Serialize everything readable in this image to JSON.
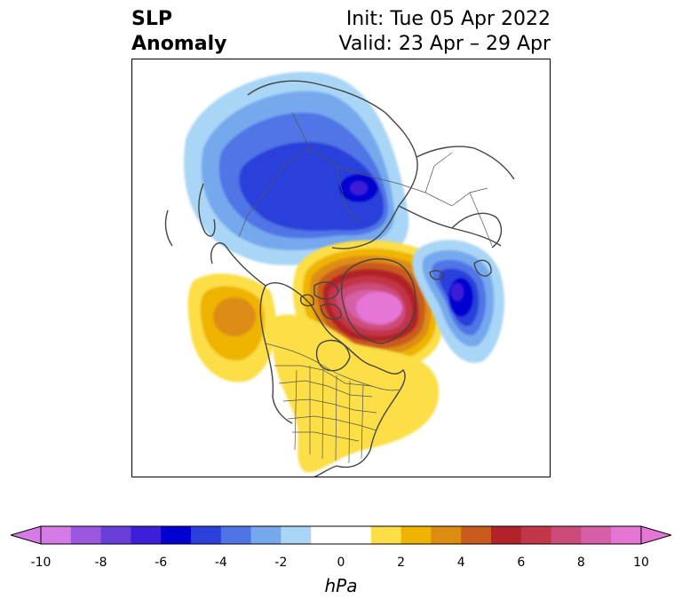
{
  "title": {
    "left_line1": "SLP",
    "left_line2": "Anomaly",
    "right_line1": "Init: Tue 05 Apr 2022",
    "right_line2": "Valid: 23 Apr – 29 Apr"
  },
  "map": {
    "projection": "polar stereographic, North America / Arctic / Greenland",
    "features": [
      {
        "name": "negative anomaly over Siberia / East Asia",
        "min_hpa": -7
      },
      {
        "name": "strong positive anomaly centered over Greenland / Canadian Arctic",
        "max_hpa": 10
      },
      {
        "name": "negative anomaly off Iceland / North Atlantic",
        "min_hpa": -8
      },
      {
        "name": "positive anomaly over Gulf of Alaska / NE Pacific",
        "max_hpa": 4
      },
      {
        "name": "positive anomaly over eastern United States",
        "max_hpa": 2
      }
    ]
  },
  "colorbar": {
    "unit": "hPa",
    "ticks": [
      "-10",
      "-8",
      "-6",
      "-4",
      "-2",
      "0",
      "2",
      "4",
      "6",
      "8",
      "10"
    ],
    "extend": "both",
    "bins": [
      {
        "from": -10,
        "to": -9,
        "color": "#d67ae6"
      },
      {
        "from": -9,
        "to": -8,
        "color": "#9d56e0"
      },
      {
        "from": -8,
        "to": -7,
        "color": "#6a3fd9"
      },
      {
        "from": -7,
        "to": -6,
        "color": "#3e1fd8"
      },
      {
        "from": -6,
        "to": -5,
        "color": "#0000d0"
      },
      {
        "from": -5,
        "to": -4,
        "color": "#2b3fda"
      },
      {
        "from": -4,
        "to": -3,
        "color": "#4f74e6"
      },
      {
        "from": -3,
        "to": -2,
        "color": "#76a8ee"
      },
      {
        "from": -2,
        "to": -1,
        "color": "#a9d6f6"
      },
      {
        "from": -1,
        "to": 1,
        "color": "#ffffff"
      },
      {
        "from": 1,
        "to": 2,
        "color": "#fcde46"
      },
      {
        "from": 2,
        "to": 3,
        "color": "#efb400"
      },
      {
        "from": 3,
        "to": 4,
        "color": "#dd8c12"
      },
      {
        "from": 4,
        "to": 5,
        "color": "#c95c1c"
      },
      {
        "from": 5,
        "to": 6,
        "color": "#b12328"
      },
      {
        "from": 6,
        "to": 7,
        "color": "#c2364a"
      },
      {
        "from": 7,
        "to": 8,
        "color": "#cc4b78"
      },
      {
        "from": 8,
        "to": 9,
        "color": "#d560a8"
      },
      {
        "from": 9,
        "to": 10,
        "color": "#e576d6"
      }
    ]
  }
}
